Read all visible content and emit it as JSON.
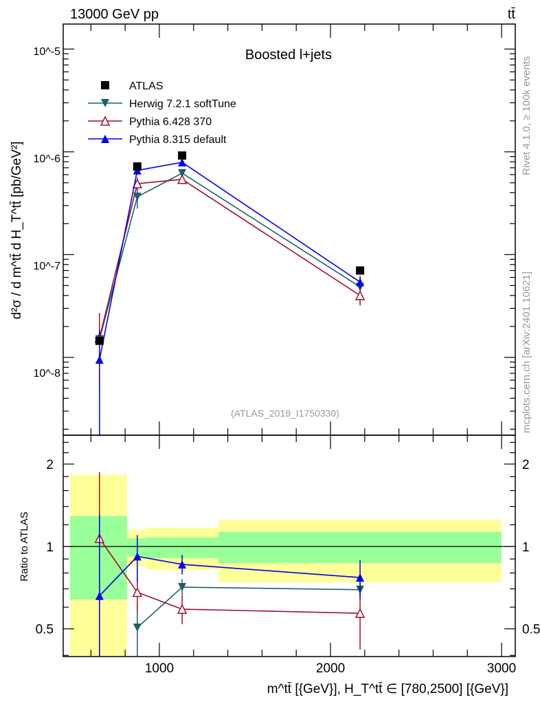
{
  "header": {
    "left": "13000 GeV pp",
    "right": "tt̄"
  },
  "side_text": {
    "rivet": "Rivet 4.1.0, ≥ 100k events",
    "mcplots": "mcplots.cern.ch [arXiv:2401.10621]"
  },
  "chart_data": [
    {
      "type": "scatter",
      "title": "Boosted l+jets",
      "watermark": "(ATLAS_2019_I1750330)",
      "ylabel": "d²σ / d m^tt̄ d H_T^tt̄ [pb/GeV²]",
      "yscale": "log",
      "ylim": [
        1.75e-09,
        1.75e-05
      ],
      "xlim": [
        438,
        3080
      ],
      "y_tick_labels": [
        "10^-8",
        "10^-7",
        "10^-6",
        "10^-5"
      ],
      "legend_position": "top-left",
      "x": [
        650,
        871,
        1133,
        2173
      ],
      "bin_edges": [
        478,
        811,
        920,
        1345,
        3000
      ],
      "series": [
        {
          "name": "ATLAS",
          "color": "#000000",
          "marker": "square",
          "values": [
            1.45e-08,
            7.2e-07,
            9.2e-07,
            7e-08
          ],
          "err_low": [
            0,
            0,
            0,
            0
          ],
          "err_high": [
            0,
            0,
            0,
            0
          ]
        },
        {
          "name": "Herwig 7.2.1 softTune",
          "color": "#1f6068",
          "marker": "triangle-down",
          "values": [
            1.5e-08,
            3.65e-07,
            6.2e-07,
            4.85e-08
          ],
          "err_low": [
            3e-09,
            8.5e-08,
            4e-08,
            4e-09
          ],
          "err_high": [
            3e-09,
            8.5e-08,
            4e-08,
            4e-09
          ]
        },
        {
          "name": "Pythia 6.428 370",
          "color": "#a0102a",
          "marker": "triangle-open",
          "values": [
            1.55e-08,
            4.9e-07,
            5.4e-07,
            4e-08
          ],
          "err_low": [
            1.1e-08,
            7e-08,
            5e-08,
            8e-09
          ],
          "err_high": [
            1.15e-08,
            7e-08,
            5e-08,
            8e-09
          ]
        },
        {
          "name": "Pythia 8.315 default",
          "color": "#0000ee",
          "marker": "triangle-up",
          "values": [
            9.5e-09,
            6.6e-07,
            7.9e-07,
            5.4e-08
          ],
          "err_low": [
            9.4e-09,
            6e-08,
            4e-08,
            8e-09
          ],
          "err_high": [
            9e-09,
            6e-08,
            4e-08,
            8e-09
          ]
        }
      ]
    },
    {
      "type": "scatter",
      "ylabel": "Ratio to ATLAS",
      "yscale": "log",
      "ylim": [
        0.396,
        2.55
      ],
      "y_ticks": [
        0.5,
        1,
        2
      ],
      "y_tick_labels": [
        "0.5",
        "1",
        "2"
      ],
      "x_ticks": [
        1000,
        2000,
        3000
      ],
      "x_tick_labels": [
        "1000",
        "2000",
        "3000"
      ],
      "xlabel": "m^tt̄ [{GeV}], H_T^tt̄ ∈ [780,2500] [{GeV}]",
      "bands": {
        "stat_color": "#99ff99",
        "total_color": "#ffff99",
        "stat_low": [
          0.64,
          0.92,
          0.906,
          0.87
        ],
        "stat_high": [
          1.29,
          1.07,
          1.08,
          1.13
        ],
        "total_low": [
          0.3,
          0.85,
          0.82,
          0.74
        ],
        "total_high": [
          1.83,
          1.15,
          1.17,
          1.25
        ]
      },
      "ratios": [
        {
          "name": "Herwig 7.2.1 softTune",
          "values": [
            null,
            0.505,
            0.71,
            0.695
          ],
          "err": [
            0,
            0.12,
            0.05,
            0.06
          ]
        },
        {
          "name": "Pythia 6.428 370",
          "values": [
            1.07,
            0.68,
            0.59,
            0.57
          ],
          "err": [
            0.8,
            0.1,
            0.07,
            0.15
          ]
        },
        {
          "name": "Pythia 8.315 default",
          "values": [
            0.66,
            0.92,
            0.86,
            0.77
          ],
          "err": [
            0.65,
            0.18,
            0.07,
            0.12
          ]
        }
      ]
    }
  ]
}
